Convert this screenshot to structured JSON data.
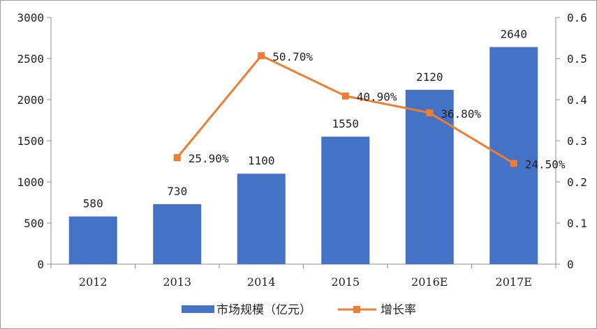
{
  "chart_data": {
    "type": "bar",
    "categories": [
      "2012",
      "2013",
      "2014",
      "2015",
      "2016E",
      "2017E"
    ],
    "series": [
      {
        "name": "市场规模（亿元）",
        "type": "bar",
        "axis": "left",
        "color": "#4472C4",
        "values": [
          580,
          730,
          1100,
          1550,
          2120,
          2640
        ],
        "labels": [
          "580",
          "730",
          "1100",
          "1550",
          "2120",
          "2640"
        ]
      },
      {
        "name": "增长率",
        "type": "line",
        "axis": "right",
        "color": "#ED7D31",
        "values": [
          null,
          0.259,
          0.507,
          0.409,
          0.368,
          0.245
        ],
        "labels": [
          "",
          "25.90%",
          "50.70%",
          "40.90%",
          "36.80%",
          "24.50%"
        ]
      }
    ],
    "y_left": {
      "range": [
        0,
        3000
      ],
      "ticks": [
        "0",
        "500",
        "1000",
        "1500",
        "2000",
        "2500",
        "3000"
      ]
    },
    "y_right": {
      "range": [
        0,
        0.6
      ],
      "ticks": [
        "0",
        "0.1",
        "0.2",
        "0.3",
        "0.4",
        "0.5",
        "0.6"
      ]
    },
    "grid": false,
    "legend_position": "bottom"
  }
}
